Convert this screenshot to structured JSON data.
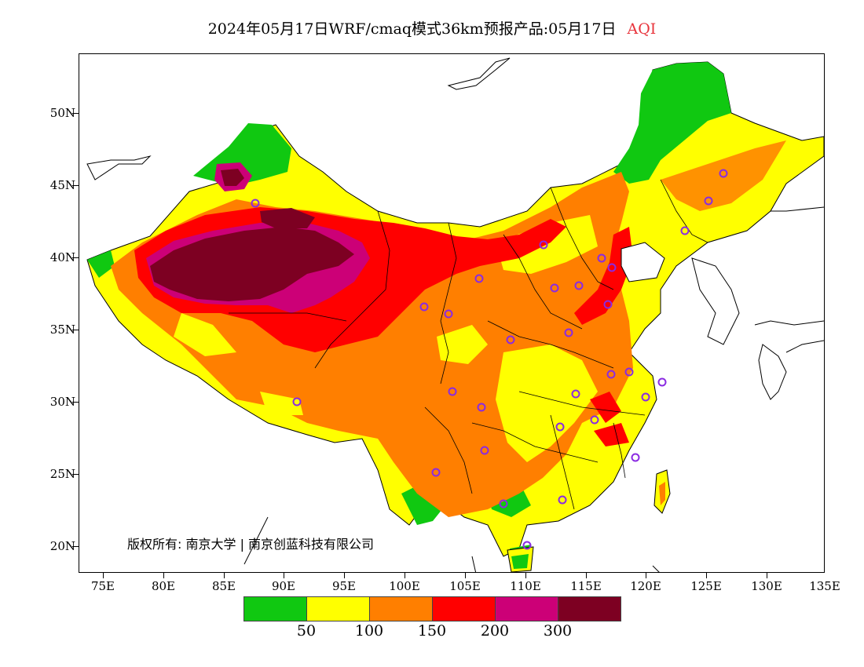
{
  "title": {
    "main": "2024年05月17日WRF/cmaq模式36km预报产品:05月17日",
    "product": "AQI"
  },
  "map": {
    "y_axis": [
      "50N",
      "45N",
      "40N",
      "35N",
      "30N",
      "25N",
      "20N"
    ],
    "x_axis": [
      "75E",
      "80E",
      "85E",
      "90E",
      "95E",
      "100E",
      "105E",
      "110E",
      "115E",
      "120E",
      "125E",
      "130E",
      "135E"
    ],
    "copyright": "版权所有: 南京大学 | 南京创蓝科技有限公司"
  },
  "legend": {
    "colors": [
      "#10c811",
      "#ffff00",
      "#ff7f00",
      "#ff0000",
      "#cc0077",
      "#7d0022"
    ],
    "labels": [
      "50",
      "100",
      "150",
      "200",
      "300"
    ]
  }
}
